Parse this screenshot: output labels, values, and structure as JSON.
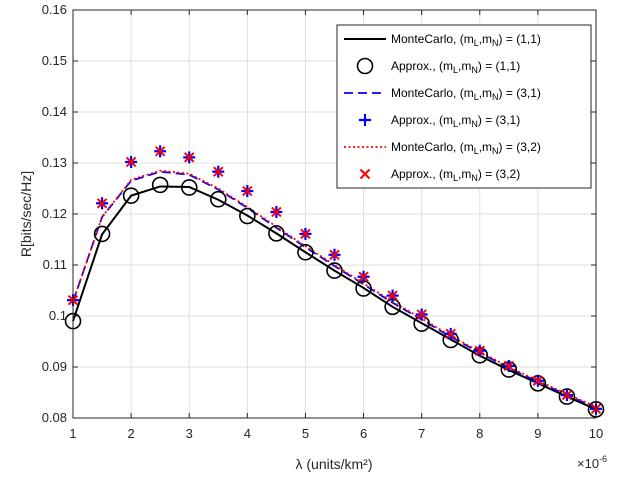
{
  "chart_data": {
    "type": "line",
    "xlabel": "λ (units/km²)",
    "ylabel": "R[bits/sec/Hz]",
    "x_multiplier_label": "×10",
    "x_multiplier_exponent": "-6",
    "xlim": [
      1,
      10
    ],
    "ylim": [
      0.08,
      0.16
    ],
    "xticks": [
      1,
      2,
      3,
      4,
      5,
      6,
      7,
      8,
      9,
      10
    ],
    "yticks": [
      0.08,
      0.09,
      0.1,
      0.11,
      0.12,
      0.13,
      0.14,
      0.15,
      0.16
    ],
    "ytick_labels": [
      "0.08",
      "0.09",
      "0.1",
      "0.11",
      "0.12",
      "0.13",
      "0.14",
      "0.15",
      "0.16"
    ],
    "grid": true,
    "legend_position": "top-right",
    "x": [
      1,
      1.5,
      2,
      2.5,
      3,
      3.5,
      4,
      4.5,
      5,
      5.5,
      6,
      6.5,
      7,
      7.5,
      8,
      8.5,
      9,
      9.5,
      10
    ],
    "series": [
      {
        "name": "MonteCarlo, (m_L,m_N) = (1,1)",
        "style": "solid-line",
        "color": "#000000",
        "values": [
          0.099,
          0.116,
          0.1236,
          0.1254,
          0.1253,
          0.1228,
          0.1197,
          0.1162,
          0.1125,
          0.1089,
          0.1055,
          0.1018,
          0.0986,
          0.0954,
          0.0922,
          0.0894,
          0.0868,
          0.0842,
          0.0817
        ]
      },
      {
        "name": "Approx., (m_L,m_N) = (1,1)",
        "style": "circle-marker",
        "color": "#000000",
        "values": [
          0.099,
          0.1161,
          0.1236,
          0.1257,
          0.1252,
          0.1229,
          0.1196,
          0.1162,
          0.1125,
          0.1089,
          0.1054,
          0.1018,
          0.0985,
          0.0953,
          0.0923,
          0.0895,
          0.0868,
          0.0842,
          0.0817
        ]
      },
      {
        "name": "MonteCarlo, (m_L,m_N) = (3,1)",
        "style": "dashed-line",
        "color": "#0000ff",
        "values": [
          0.1028,
          0.1194,
          0.1265,
          0.1283,
          0.1277,
          0.1248,
          0.1212,
          0.1173,
          0.1135,
          0.1098,
          0.1062,
          0.1026,
          0.0993,
          0.0959,
          0.0928,
          0.0898,
          0.0871,
          0.0845,
          0.082
        ]
      },
      {
        "name": "Approx., (m_L,m_N) = (3,1)",
        "style": "plus-marker",
        "color": "#0000ff",
        "values": [
          0.1031,
          0.1221,
          0.1302,
          0.1323,
          0.1311,
          0.1283,
          0.1245,
          0.1204,
          0.1161,
          0.112,
          0.1077,
          0.104,
          0.1003,
          0.0965,
          0.0932,
          0.0902,
          0.0873,
          0.0845,
          0.0818
        ]
      },
      {
        "name": "MonteCarlo, (m_L,m_N) = (3,2)",
        "style": "dotted-line",
        "color": "#ff0000",
        "values": [
          0.1028,
          0.1194,
          0.1267,
          0.1285,
          0.1279,
          0.125,
          0.1214,
          0.1175,
          0.1137,
          0.11,
          0.1064,
          0.1028,
          0.0995,
          0.0961,
          0.093,
          0.09,
          0.0873,
          0.0847,
          0.0822
        ]
      },
      {
        "name": "Approx., (m_L,m_N) = (3,2)",
        "style": "x-marker",
        "color": "#ff0000",
        "values": [
          0.1031,
          0.1221,
          0.1302,
          0.1323,
          0.1311,
          0.1283,
          0.1245,
          0.1204,
          0.1161,
          0.112,
          0.1077,
          0.104,
          0.1003,
          0.0965,
          0.0932,
          0.0902,
          0.0873,
          0.0845,
          0.0818
        ]
      }
    ],
    "legend": [
      {
        "prefix": "MonteCarlo, (m",
        "sub1": "L",
        "mid": ",m",
        "sub2": "N",
        "suffix": ") = (1,1)"
      },
      {
        "prefix": "Approx., (m",
        "sub1": "L",
        "mid": ",m",
        "sub2": "N",
        "suffix": ") = (1,1)"
      },
      {
        "prefix": "MonteCarlo, (m",
        "sub1": "L",
        "mid": ",m",
        "sub2": "N",
        "suffix": ") = (3,1)"
      },
      {
        "prefix": "Approx., (m",
        "sub1": "L",
        "mid": ",m",
        "sub2": "N",
        "suffix": ") = (3,1)"
      },
      {
        "prefix": "MonteCarlo, (m",
        "sub1": "L",
        "mid": ",m",
        "sub2": "N",
        "suffix": ") = (3,2)"
      },
      {
        "prefix": "Approx., (m",
        "sub1": "L",
        "mid": ",m",
        "sub2": "N",
        "suffix": ") = (3,2)"
      }
    ]
  }
}
